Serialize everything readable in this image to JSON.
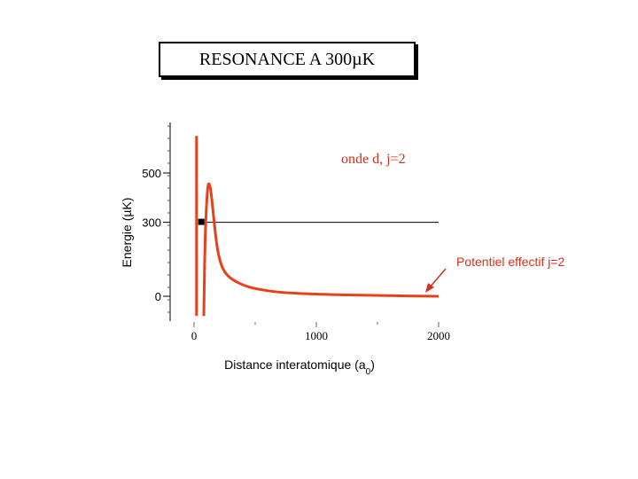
{
  "title": "RESONANCE A 300µK",
  "colors": {
    "potential": "#e8401c",
    "annotation": "#d4301c",
    "axis": "#000000"
  },
  "chart_data": {
    "type": "line",
    "title": "RESONANCE A 300µK",
    "xlabel": "Distance interatomique (a",
    "xlabel_sub": "0",
    "xlabel_suffix": ")",
    "ylabel": "Energie (µK)",
    "xlim": [
      -100,
      2000
    ],
    "ylim": [
      -80,
      650
    ],
    "x_ticks": [
      0,
      1000,
      2000
    ],
    "x_tick_labels": [
      "0",
      "1000",
      "2000"
    ],
    "y_ticks": [
      0,
      300,
      500
    ],
    "y_tick_labels": [
      "0",
      "300",
      "500"
    ],
    "grid": false,
    "series": [
      {
        "name": "Potentiel effectif j=2",
        "x": [
          20,
          20,
          20,
          80,
          90,
          110,
          125,
          140,
          160,
          180,
          200,
          230,
          270,
          320,
          400,
          500,
          700,
          1000,
          1500,
          2000
        ],
        "y": [
          -80,
          300,
          650,
          -80,
          250,
          450,
          460,
          420,
          320,
          230,
          165,
          115,
          85,
          65,
          45,
          30,
          15,
          8,
          3,
          0
        ]
      }
    ],
    "reference_line": {
      "y": 300,
      "x_start": 80,
      "x_end": 2000
    },
    "marker": {
      "x": 55,
      "y": 300
    },
    "annotations": [
      {
        "text": "onde d, j=2"
      },
      {
        "text": "Potentiel effectif j=2"
      }
    ]
  }
}
